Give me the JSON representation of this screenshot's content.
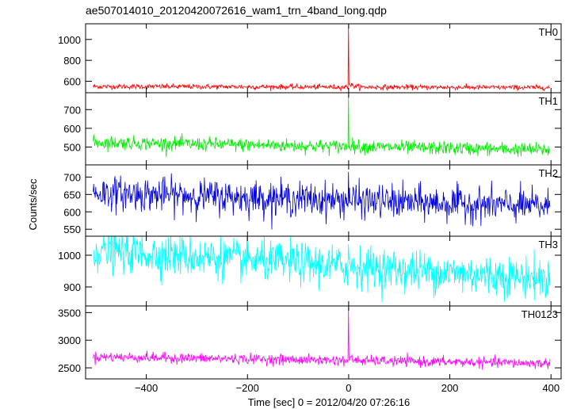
{
  "chart_data": {
    "type": "line",
    "title": "ae507014010_20120420072616_wam1_trn_4band_long.qdp",
    "xlabel": "Time [sec] 0 = 2012/04/20 07:26:16",
    "ylabel": "Counts/sec",
    "xlim": [
      -520,
      420
    ],
    "x_ticks": [
      -400,
      -200,
      0,
      200,
      400
    ],
    "x_tick_labels": [
      "−400",
      "−200",
      "0",
      "200",
      "400"
    ],
    "x_range_of_data": [
      -505,
      398
    ],
    "trigger_time": 0,
    "panels": [
      {
        "label": "TH0",
        "color": "#ff0000",
        "ylim": [
          490,
          1150
        ],
        "yticks": [
          600,
          800,
          1000
        ],
        "baseline": 545,
        "noise_sigma": 12,
        "baseline_trend": -10,
        "peak_value": 1140
      },
      {
        "label": "TH1",
        "color": "#00ee00",
        "ylim": [
          405,
          790
        ],
        "yticks": [
          500,
          600,
          700
        ],
        "baseline": 505,
        "noise_sigma": 18,
        "baseline_trend": -40,
        "peak_value": 780
      },
      {
        "label": "TH2",
        "color": "#0000dd",
        "ylim": [
          530,
          735
        ],
        "yticks": [
          550,
          600,
          650,
          700
        ],
        "baseline": 635,
        "noise_sigma": 24,
        "baseline_trend": -40,
        "peak_value": 715
      },
      {
        "label": "TH3",
        "color": "#00ffff",
        "ylim": [
          840,
          1060
        ],
        "yticks": [
          900,
          1000
        ],
        "baseline": 970,
        "noise_sigma": 32,
        "baseline_trend": -90,
        "peak_value": 1035
      },
      {
        "label": "TH0123",
        "color": "#ff00ff",
        "ylim": [
          2300,
          3620
        ],
        "yticks": [
          2500,
          3000,
          3500
        ],
        "baseline": 2640,
        "noise_sigma": 45,
        "baseline_trend": -120,
        "peak_value": 3600
      }
    ],
    "grid": false,
    "legend": "none"
  }
}
